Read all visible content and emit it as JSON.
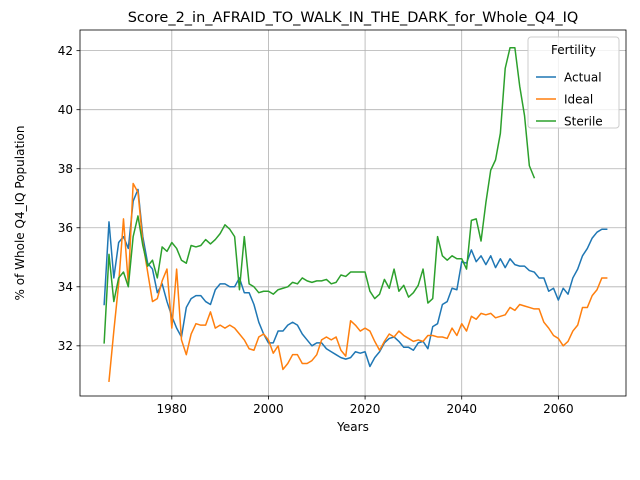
{
  "chart_data": {
    "type": "line",
    "title": "Score_2_in_AFRAID_TO_WALK_IN_THE_DARK_for_Whole_Q4_IQ",
    "xlabel": "Years",
    "ylabel": "% of Whole Q4_IQ Population",
    "xlim": [
      1961,
      2074
    ],
    "ylim": [
      30.3,
      42.7
    ],
    "xticks": [
      1980,
      2000,
      2020,
      2040,
      2060
    ],
    "yticks": [
      32,
      34,
      36,
      38,
      40,
      42
    ],
    "grid": true,
    "legend": {
      "title": "Fertility",
      "position": "top-right"
    },
    "series": [
      {
        "name": "Actual",
        "color": "#1f77b4",
        "x": [
          1966,
          1967,
          1968,
          1969,
          1970,
          1971,
          1972,
          1973,
          1974,
          1975,
          1976,
          1977,
          1978,
          1979,
          1980,
          1981,
          1982,
          1983,
          1984,
          1985,
          1986,
          1987,
          1988,
          1989,
          1990,
          1991,
          1992,
          1993,
          1994,
          1995,
          1996,
          1997,
          1998,
          1999,
          2000,
          2001,
          2002,
          2003,
          2004,
          2005,
          2006,
          2007,
          2008,
          2009,
          2010,
          2011,
          2012,
          2013,
          2014,
          2015,
          2016,
          2017,
          2018,
          2019,
          2020,
          2021,
          2022,
          2023,
          2024,
          2025,
          2026,
          2027,
          2028,
          2029,
          2030,
          2031,
          2032,
          2033,
          2034,
          2035,
          2036,
          2037,
          2038,
          2039,
          2040,
          2041,
          2042,
          2043,
          2044,
          2045,
          2046,
          2047,
          2048,
          2049,
          2050,
          2051,
          2052,
          2053,
          2054,
          2055,
          2056,
          2057,
          2058,
          2059,
          2060,
          2061,
          2062,
          2063,
          2064,
          2065,
          2066,
          2067,
          2068,
          2069,
          2070
        ],
        "values": [
          33.4,
          36.2,
          34.3,
          35.5,
          35.7,
          35.3,
          36.9,
          37.3,
          35.7,
          34.8,
          34.6,
          33.8,
          34.1,
          33.5,
          33.0,
          32.6,
          32.3,
          33.3,
          33.6,
          33.7,
          33.7,
          33.5,
          33.4,
          33.9,
          34.1,
          34.1,
          34.0,
          34.0,
          34.3,
          33.8,
          33.8,
          33.4,
          32.8,
          32.4,
          32.1,
          32.1,
          32.5,
          32.5,
          32.7,
          32.8,
          32.7,
          32.4,
          32.2,
          32.0,
          32.1,
          32.1,
          31.9,
          31.8,
          31.7,
          31.6,
          31.55,
          31.6,
          31.8,
          31.75,
          31.8,
          31.3,
          31.6,
          31.8,
          32.1,
          32.25,
          32.3,
          32.15,
          31.95,
          31.95,
          31.85,
          32.1,
          32.15,
          31.9,
          32.65,
          32.75,
          33.4,
          33.5,
          33.95,
          33.9,
          34.85,
          34.8,
          35.25,
          34.85,
          35.05,
          34.75,
          35.05,
          34.65,
          34.95,
          34.65,
          34.95,
          34.75,
          34.7,
          34.7,
          34.55,
          34.5,
          34.3,
          34.3,
          33.85,
          33.95,
          33.55,
          33.95,
          33.75,
          34.3,
          34.6,
          35.05,
          35.3,
          35.65,
          35.85,
          35.95,
          35.95
        ]
      },
      {
        "name": "Ideal",
        "color": "#ff7f0e",
        "x": [
          1967,
          1968,
          1969,
          1970,
          1971,
          1972,
          1973,
          1974,
          1975,
          1976,
          1977,
          1978,
          1979,
          1980,
          1981,
          1982,
          1983,
          1984,
          1985,
          1986,
          1987,
          1988,
          1989,
          1990,
          1991,
          1992,
          1993,
          1994,
          1995,
          1996,
          1997,
          1998,
          1999,
          2000,
          2001,
          2002,
          2003,
          2004,
          2005,
          2006,
          2007,
          2008,
          2009,
          2010,
          2011,
          2012,
          2013,
          2014,
          2015,
          2016,
          2017,
          2018,
          2019,
          2020,
          2021,
          2022,
          2023,
          2024,
          2025,
          2026,
          2027,
          2028,
          2029,
          2030,
          2031,
          2032,
          2033,
          2034,
          2035,
          2036,
          2037,
          2038,
          2039,
          2040,
          2041,
          2042,
          2043,
          2044,
          2045,
          2046,
          2047,
          2048,
          2049,
          2050,
          2051,
          2052,
          2053,
          2054,
          2055,
          2056,
          2057,
          2058,
          2059,
          2060,
          2061,
          2062,
          2063,
          2064,
          2065,
          2066,
          2067,
          2068,
          2069,
          2070
        ],
        "values": [
          30.8,
          32.5,
          34.1,
          36.3,
          34.1,
          37.5,
          37.2,
          35.5,
          34.5,
          33.5,
          33.6,
          34.2,
          34.6,
          32.6,
          34.6,
          32.2,
          31.7,
          32.4,
          32.75,
          32.7,
          32.7,
          33.15,
          32.6,
          32.7,
          32.6,
          32.7,
          32.6,
          32.4,
          32.2,
          31.9,
          31.85,
          32.3,
          32.4,
          32.2,
          31.75,
          32.0,
          31.2,
          31.4,
          31.7,
          31.7,
          31.4,
          31.4,
          31.5,
          31.7,
          32.2,
          32.3,
          32.2,
          32.3,
          31.85,
          31.65,
          32.85,
          32.7,
          32.5,
          32.6,
          32.5,
          32.15,
          31.85,
          32.15,
          32.4,
          32.3,
          32.5,
          32.35,
          32.25,
          32.15,
          32.2,
          32.15,
          32.35,
          32.35,
          32.3,
          32.3,
          32.25,
          32.6,
          32.35,
          32.75,
          32.5,
          33.0,
          32.9,
          33.1,
          33.05,
          33.1,
          32.95,
          33.0,
          33.05,
          33.3,
          33.2,
          33.4,
          33.35,
          33.3,
          33.25,
          33.25,
          32.8,
          32.6,
          32.35,
          32.25,
          32.0,
          32.15,
          32.5,
          32.7,
          33.3,
          33.3,
          33.7,
          33.9,
          34.3,
          34.3
        ]
      },
      {
        "name": "Sterile",
        "color": "#2ca02c",
        "x": [
          1966,
          1967,
          1968,
          1969,
          1970,
          1971,
          1972,
          1973,
          1974,
          1975,
          1976,
          1977,
          1978,
          1979,
          1980,
          1981,
          1982,
          1983,
          1984,
          1985,
          1986,
          1987,
          1988,
          1989,
          1990,
          1991,
          1992,
          1993,
          1994,
          1995,
          1996,
          1997,
          1998,
          1999,
          2000,
          2001,
          2002,
          2003,
          2004,
          2005,
          2006,
          2007,
          2008,
          2009,
          2010,
          2011,
          2012,
          2013,
          2014,
          2015,
          2016,
          2017,
          2018,
          2019,
          2020,
          2021,
          2022,
          2023,
          2024,
          2025,
          2026,
          2027,
          2028,
          2029,
          2030,
          2031,
          2032,
          2033,
          2034,
          2035,
          2036,
          2037,
          2038,
          2039,
          2040,
          2041,
          2042,
          2043,
          2044,
          2045,
          2046,
          2047,
          2048,
          2049,
          2050,
          2051,
          2052,
          2053,
          2054,
          2055
        ],
        "values": [
          32.1,
          35.1,
          33.5,
          34.3,
          34.5,
          34.0,
          35.7,
          36.4,
          35.4,
          34.7,
          34.9,
          34.3,
          35.35,
          35.2,
          35.5,
          35.3,
          34.9,
          34.8,
          35.4,
          35.35,
          35.4,
          35.6,
          35.45,
          35.6,
          35.8,
          36.1,
          35.95,
          35.7,
          33.9,
          35.7,
          34.1,
          34.0,
          33.8,
          33.85,
          33.85,
          33.75,
          33.9,
          33.95,
          34.0,
          34.15,
          34.1,
          34.3,
          34.2,
          34.15,
          34.2,
          34.2,
          34.25,
          34.1,
          34.15,
          34.4,
          34.35,
          34.5,
          34.5,
          34.5,
          34.5,
          33.85,
          33.6,
          33.75,
          34.25,
          33.95,
          34.6,
          33.85,
          34.05,
          33.65,
          33.8,
          34.05,
          34.6,
          33.45,
          33.6,
          35.7,
          35.05,
          34.9,
          35.05,
          34.95,
          34.95,
          34.6,
          36.25,
          36.3,
          35.55,
          36.85,
          37.95,
          38.3,
          39.2,
          41.4,
          42.1,
          42.1,
          40.8,
          39.8,
          38.1,
          37.7
        ]
      }
    ]
  }
}
